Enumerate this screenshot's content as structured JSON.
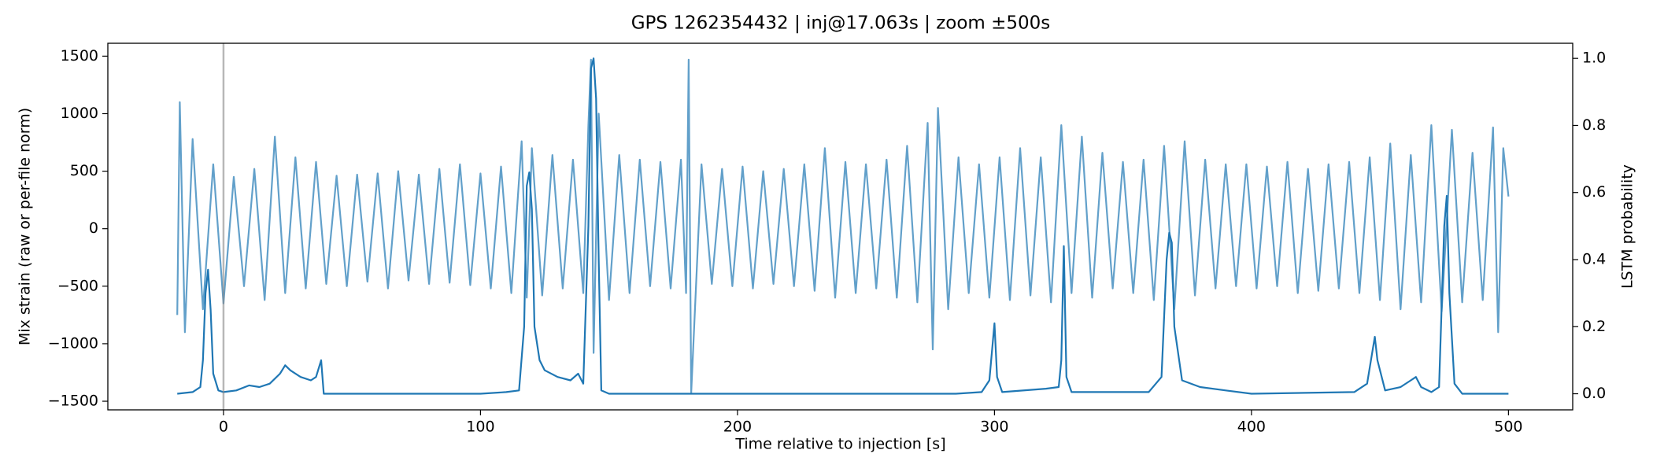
{
  "chart_data": {
    "type": "line",
    "title": "GPS 1262354432 | inj@17.063s | zoom ±500s",
    "xlabel": "Time relative to injection [s]",
    "ylabel": "Mix strain (raw or per-file norm)",
    "y2label": "LSTM probability",
    "xlim": [
      -45,
      525
    ],
    "xticks": [
      0,
      100,
      200,
      300,
      400,
      500
    ],
    "ylim": [
      -1575,
      1612
    ],
    "yticks": [
      {
        "value": -1500,
        "label": "−1500"
      },
      {
        "value": -1000,
        "label": "−1000"
      },
      {
        "value": -500,
        "label": "−500"
      },
      0,
      500,
      1000,
      1500
    ],
    "y2lim": [
      -0.048,
      1.045
    ],
    "y2ticks": [
      {
        "value": 0,
        "label": "0.0"
      },
      0.2,
      0.4,
      0.6,
      0.8,
      {
        "value": 1,
        "label": "1.0"
      }
    ],
    "vline": 0,
    "series": [
      {
        "name": "Mix strain",
        "color": "#1f77b4",
        "opacity": 0.7,
        "axis": "y",
        "x": [
          -18,
          -17,
          -15,
          -12,
          -8,
          -4,
          0,
          4,
          8,
          12,
          16,
          20,
          24,
          28,
          32,
          36,
          40,
          44,
          48,
          52,
          56,
          60,
          64,
          68,
          72,
          76,
          80,
          84,
          88,
          92,
          96,
          100,
          104,
          108,
          112,
          116,
          118,
          120,
          124,
          128,
          132,
          136,
          140,
          142,
          143,
          144,
          146,
          150,
          154,
          158,
          162,
          166,
          170,
          174,
          178,
          180,
          181,
          182,
          186,
          190,
          194,
          198,
          202,
          206,
          210,
          214,
          218,
          222,
          226,
          230,
          234,
          238,
          242,
          246,
          250,
          254,
          258,
          262,
          266,
          270,
          274,
          276,
          278,
          282,
          286,
          290,
          294,
          298,
          302,
          306,
          310,
          314,
          318,
          322,
          326,
          330,
          334,
          338,
          342,
          346,
          350,
          354,
          358,
          362,
          366,
          370,
          374,
          378,
          382,
          386,
          390,
          394,
          398,
          402,
          406,
          410,
          414,
          418,
          422,
          426,
          430,
          434,
          438,
          442,
          446,
          450,
          454,
          458,
          462,
          466,
          470,
          474,
          478,
          482,
          486,
          490,
          494,
          496,
          498,
          500
        ],
        "values": [
          -750,
          1100,
          -900,
          780,
          -700,
          560,
          -650,
          450,
          -500,
          520,
          -620,
          800,
          -560,
          620,
          -520,
          580,
          -480,
          460,
          -500,
          470,
          -460,
          480,
          -520,
          500,
          -450,
          470,
          -480,
          520,
          -470,
          560,
          -490,
          480,
          -520,
          540,
          -560,
          760,
          -600,
          700,
          -580,
          640,
          -520,
          600,
          -560,
          900,
          1470,
          -1080,
          1000,
          -620,
          640,
          -560,
          600,
          -500,
          580,
          -520,
          600,
          -560,
          1470,
          -1430,
          560,
          -480,
          520,
          -500,
          540,
          -520,
          500,
          -480,
          520,
          -500,
          560,
          -540,
          700,
          -600,
          580,
          -560,
          560,
          -520,
          600,
          -600,
          720,
          -640,
          920,
          -1050,
          1050,
          -700,
          620,
          -560,
          560,
          -600,
          620,
          -620,
          700,
          -580,
          620,
          -640,
          900,
          -560,
          800,
          -600,
          660,
          -520,
          580,
          -560,
          600,
          -620,
          720,
          -700,
          760,
          -580,
          600,
          -520,
          560,
          -500,
          560,
          -520,
          540,
          -500,
          580,
          -560,
          520,
          -540,
          560,
          -520,
          580,
          -560,
          620,
          -620,
          740,
          -700,
          640,
          -640,
          900,
          -720,
          860,
          -640,
          660,
          -620,
          880,
          -900,
          700,
          280
        ]
      },
      {
        "name": "LSTM probability",
        "color": "#1f77b4",
        "opacity": 1,
        "axis": "y2",
        "x": [
          -18,
          -12,
          -9,
          -8,
          -7,
          -6,
          -5,
          -4,
          -2,
          0,
          5,
          10,
          14,
          18,
          22,
          24,
          26,
          30,
          34,
          36,
          38,
          39,
          60,
          100,
          110,
          115,
          117,
          118,
          119,
          120,
          121,
          123,
          125,
          130,
          135,
          138,
          140,
          142,
          143,
          144,
          145,
          146,
          147,
          150,
          200,
          250,
          285,
          295,
          298,
          300,
          301,
          303,
          320,
          325,
          326,
          327,
          328,
          330,
          350,
          360,
          365,
          367,
          368,
          369,
          370,
          373,
          380,
          390,
          400,
          440,
          445,
          448,
          449,
          452,
          458,
          462,
          464,
          466,
          470,
          473,
          475,
          476,
          477,
          479,
          482,
          500
        ],
        "values": [
          0,
          0.005,
          0.02,
          0.1,
          0.3,
          0.37,
          0.25,
          0.06,
          0.01,
          0.005,
          0.01,
          0.025,
          0.02,
          0.03,
          0.06,
          0.085,
          0.07,
          0.05,
          0.04,
          0.05,
          0.1,
          0,
          0,
          0,
          0.005,
          0.01,
          0.2,
          0.62,
          0.66,
          0.55,
          0.2,
          0.1,
          0.07,
          0.05,
          0.04,
          0.06,
          0.03,
          0.5,
          0.97,
          1,
          0.88,
          0.4,
          0.01,
          0,
          0,
          0,
          0,
          0.005,
          0.04,
          0.21,
          0.05,
          0.005,
          0.015,
          0.02,
          0.1,
          0.44,
          0.05,
          0.005,
          0.005,
          0.005,
          0.05,
          0.4,
          0.48,
          0.45,
          0.2,
          0.04,
          0.02,
          0.01,
          0,
          0.005,
          0.03,
          0.17,
          0.1,
          0.01,
          0.02,
          0.04,
          0.05,
          0.02,
          0.005,
          0.02,
          0.5,
          0.59,
          0.3,
          0.03,
          0,
          0
        ]
      }
    ]
  }
}
